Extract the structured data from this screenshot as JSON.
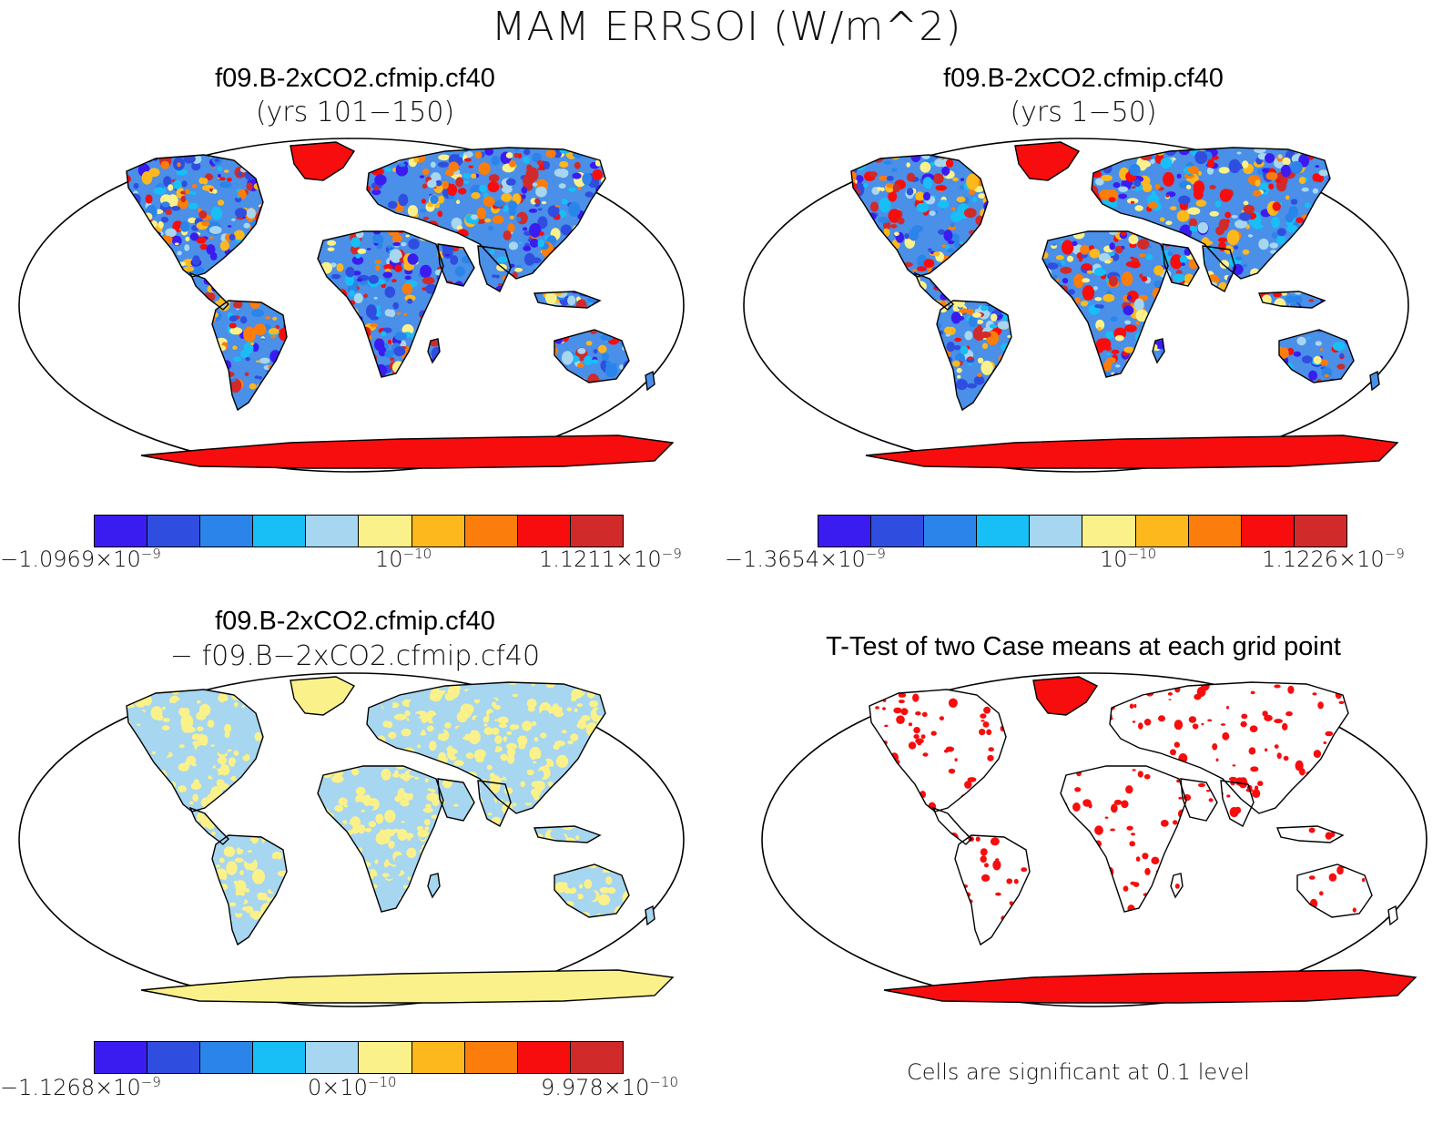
{
  "title": "MAM ERRSOI (W/m^2)",
  "panels": [
    {
      "id": "p1",
      "title_line1": "f09.B-2xCO2.cfmip.cf40",
      "title_line2": "(yrs 101−150)",
      "land_fill": "#4a8fe8",
      "colorbar": {
        "colors": [
          "#3b1cf0",
          "#2f4ee0",
          "#2b84ea",
          "#18bef6",
          "#a6d6f0",
          "#fbf18a",
          "#fdb81e",
          "#fb7d0c",
          "#f70d0d",
          "#d12a2a"
        ],
        "min_mantissa": "−1.0969×10",
        "min_exp": "−9",
        "mid_mantissa": "10",
        "mid_exp": "−10",
        "max_mantissa": "1.1211×10",
        "max_exp": "−9"
      }
    },
    {
      "id": "p2",
      "title_line1": "f09.B-2xCO2.cfmip.cf40",
      "title_line2": "(yrs 1−50)",
      "land_fill": "#4a8fe8",
      "colorbar": {
        "colors": [
          "#3b1cf0",
          "#2f4ee0",
          "#2b84ea",
          "#18bef6",
          "#a6d6f0",
          "#fbf18a",
          "#fdb81e",
          "#fb7d0c",
          "#f70d0d",
          "#d12a2a"
        ],
        "min_mantissa": "−1.3654×10",
        "min_exp": "−9",
        "mid_mantissa": "10",
        "mid_exp": "−10",
        "max_mantissa": "1.1226×10",
        "max_exp": "−9"
      }
    },
    {
      "id": "p3",
      "title_line1": "f09.B-2xCO2.cfmip.cf40",
      "title_line2": "− f09.B−2xCO2.cfmip.cf40",
      "land_fill": "#a6d6f0",
      "colorbar": {
        "colors": [
          "#3b1cf0",
          "#2f4ee0",
          "#2b84ea",
          "#18bef6",
          "#a6d6f0",
          "#fbf18a",
          "#fdb81e",
          "#fb7d0c",
          "#f70d0d",
          "#d12a2a"
        ],
        "min_mantissa": "−1.1268×10",
        "min_exp": "−9",
        "mid_mantissa": "0×10",
        "mid_exp": "−10",
        "max_mantissa": "9.978×10",
        "max_exp": "−10"
      }
    },
    {
      "id": "p4",
      "title_line1": "T-Test of two Case means at each grid point",
      "land_fill": "#ffffff",
      "note": "Cells are significant at 0.1 level"
    }
  ]
}
